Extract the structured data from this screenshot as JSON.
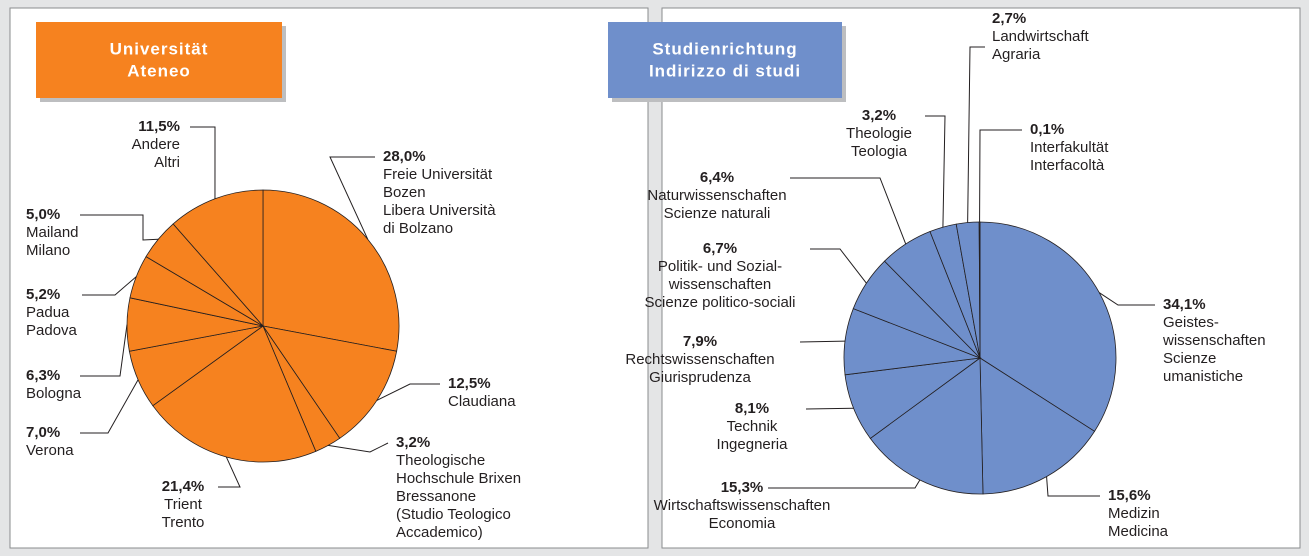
{
  "chart_data": [
    {
      "type": "pie",
      "title": [
        "Universität",
        "Ateneo"
      ],
      "color": "#f6821f",
      "categories": [
        [
          "Freie Universität",
          "Bozen",
          "Libera Università",
          "di Bolzano"
        ],
        [
          "Claudiana"
        ],
        [
          "Theologische",
          "Hochschule Brixen",
          "Bressanone",
          "(Studio Teologico",
          "Accademico)"
        ],
        [
          "Trient",
          "Trento"
        ],
        [
          "Verona"
        ],
        [
          "Bologna"
        ],
        [
          "Padua",
          "Padova"
        ],
        [
          "Mailand",
          "Milano"
        ],
        [
          "Andere",
          "Altri"
        ]
      ],
      "values": [
        28.0,
        12.5,
        3.2,
        21.4,
        7.0,
        6.3,
        5.2,
        5.0,
        11.5
      ],
      "value_labels": [
        "28,0%",
        "12,5%",
        "3,2%",
        "21,4%",
        "7,0%",
        "6,3%",
        "5,2%",
        "5,0%",
        "11,5%"
      ]
    },
    {
      "type": "pie",
      "title": [
        "Studienrichtung",
        "Indirizzo di studi"
      ],
      "color": "#6f8fcb",
      "categories": [
        [
          "Geistes-",
          "wissenschaften",
          "Scienze",
          "umanistiche"
        ],
        [
          "Medizin",
          "Medicina"
        ],
        [
          "Wirtschaftswissenschaften",
          "Economia"
        ],
        [
          "Technik",
          "Ingegneria"
        ],
        [
          "Rechtswissenschaften",
          "Giurisprudenza"
        ],
        [
          "Politik- und Sozial-",
          "wissenschaften",
          "Scienze politico-sociali"
        ],
        [
          "Naturwissenschaften",
          "Scienze naturali"
        ],
        [
          "Theologie",
          "Teologia"
        ],
        [
          "Landwirtschaft",
          "Agraria"
        ],
        [
          "Interfakultät",
          "Interfacoltà"
        ]
      ],
      "values": [
        34.1,
        15.6,
        15.3,
        8.1,
        7.9,
        6.7,
        6.4,
        3.2,
        2.7,
        0.1
      ],
      "value_labels": [
        "34,1%",
        "15,6%",
        "15,3%",
        "8,1%",
        "7,9%",
        "6,7%",
        "6,4%",
        "3,2%",
        "2,7%",
        "0,1%"
      ]
    }
  ]
}
